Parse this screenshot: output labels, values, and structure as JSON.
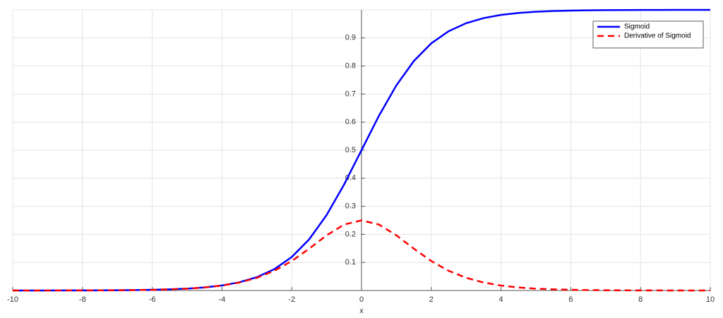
{
  "chart_data": {
    "type": "line",
    "x_label": "x",
    "x": [
      -10,
      -9.5,
      -9,
      -8.5,
      -8,
      -7.5,
      -7,
      -6.5,
      -6,
      -5.5,
      -5,
      -4.5,
      -4,
      -3.5,
      -3,
      -2.5,
      -2,
      -1.5,
      -1,
      -0.5,
      0,
      0.5,
      1,
      1.5,
      2,
      2.5,
      3,
      3.5,
      4,
      4.5,
      5,
      5.5,
      6,
      6.5,
      7,
      7.5,
      8,
      8.5,
      9,
      9.5,
      10
    ],
    "series": [
      {
        "name": "Sigmoid",
        "color": "#0000ff",
        "linestyle": "solid",
        "values": [
          0.0,
          0.0001,
          0.0001,
          0.0002,
          0.0003,
          0.0006,
          0.0009,
          0.0015,
          0.0025,
          0.0041,
          0.0067,
          0.011,
          0.018,
          0.0293,
          0.0474,
          0.0759,
          0.1192,
          0.1824,
          0.2689,
          0.3775,
          0.5,
          0.6225,
          0.7311,
          0.8176,
          0.8808,
          0.9241,
          0.9526,
          0.9707,
          0.982,
          0.989,
          0.9933,
          0.9959,
          0.9975,
          0.9985,
          0.9991,
          0.9994,
          0.9997,
          0.9998,
          0.9999,
          0.9999,
          1.0
        ]
      },
      {
        "name": "Derivative of Sigmoid",
        "color": "#ff0000",
        "linestyle": "dashed",
        "values": [
          0.0,
          0.0001,
          0.0001,
          0.0002,
          0.0003,
          0.0006,
          0.0009,
          0.0015,
          0.0025,
          0.0041,
          0.0066,
          0.0109,
          0.0177,
          0.0285,
          0.0452,
          0.0701,
          0.105,
          0.1491,
          0.1966,
          0.235,
          0.25,
          0.235,
          0.1966,
          0.1491,
          0.105,
          0.0701,
          0.0452,
          0.0285,
          0.0177,
          0.0109,
          0.0066,
          0.0041,
          0.0025,
          0.0015,
          0.0009,
          0.0006,
          0.0003,
          0.0002,
          0.0001,
          0.0001,
          0.0
        ]
      }
    ],
    "xlim": [
      -10,
      10
    ],
    "ylim": [
      0,
      1
    ],
    "xticks": [
      -10,
      -8,
      -6,
      -4,
      -2,
      0,
      2,
      4,
      6,
      8,
      10
    ],
    "yticks": [
      0.1,
      0.2,
      0.3,
      0.4,
      0.5,
      0.6,
      0.7,
      0.8,
      0.9
    ],
    "grid": true,
    "legend": "northeast"
  }
}
